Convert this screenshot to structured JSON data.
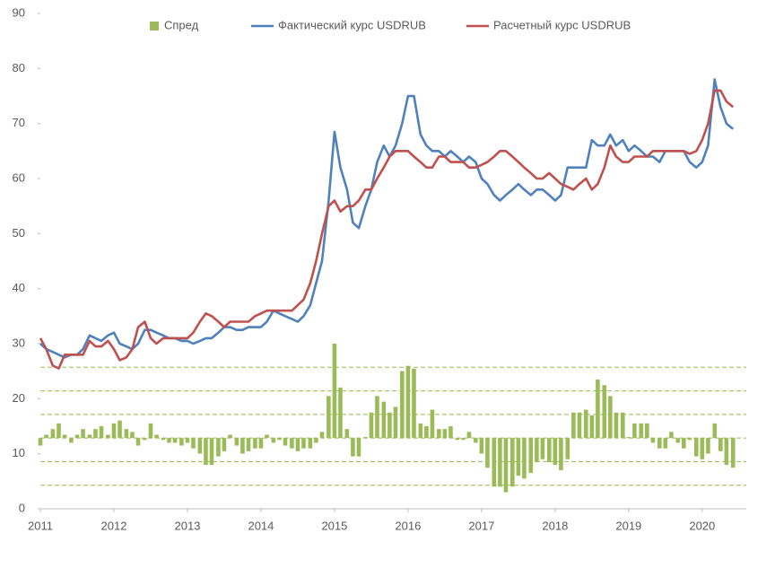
{
  "chart_data": {
    "type": "combo",
    "x": [
      2011,
      2011.08,
      2011.17,
      2011.25,
      2011.33,
      2011.42,
      2011.5,
      2011.58,
      2011.67,
      2011.75,
      2011.83,
      2011.92,
      2012,
      2012.08,
      2012.17,
      2012.25,
      2012.33,
      2012.42,
      2012.5,
      2012.58,
      2012.67,
      2012.75,
      2012.83,
      2012.92,
      2013,
      2013.08,
      2013.17,
      2013.25,
      2013.33,
      2013.42,
      2013.5,
      2013.58,
      2013.67,
      2013.75,
      2013.83,
      2013.92,
      2014,
      2014.08,
      2014.17,
      2014.25,
      2014.33,
      2014.42,
      2014.5,
      2014.58,
      2014.67,
      2014.75,
      2014.83,
      2014.92,
      2015,
      2015.08,
      2015.17,
      2015.25,
      2015.33,
      2015.42,
      2015.5,
      2015.58,
      2015.67,
      2015.75,
      2015.83,
      2015.92,
      2016,
      2016.08,
      2016.17,
      2016.25,
      2016.33,
      2016.42,
      2016.5,
      2016.58,
      2016.67,
      2016.75,
      2016.83,
      2016.92,
      2017,
      2017.08,
      2017.17,
      2017.25,
      2017.33,
      2017.42,
      2017.5,
      2017.58,
      2017.67,
      2017.75,
      2017.83,
      2017.92,
      2018,
      2018.08,
      2018.17,
      2018.25,
      2018.33,
      2018.42,
      2018.5,
      2018.58,
      2018.67,
      2018.75,
      2018.83,
      2018.92,
      2019,
      2019.08,
      2019.17,
      2019.25,
      2019.33,
      2019.42,
      2019.5,
      2019.58,
      2019.67,
      2019.75,
      2019.83,
      2019.92,
      2020,
      2020.08,
      2020.17,
      2020.25,
      2020.33,
      2020.42
    ],
    "series": [
      {
        "name": "Спред",
        "type": "bar",
        "axis": "y2",
        "color": "#9bbb59",
        "values": [
          -1.6,
          0.7,
          1.9,
          3.1,
          0.7,
          -1.0,
          0.7,
          1.9,
          0.7,
          1.9,
          2.5,
          0.7,
          3.1,
          3.7,
          1.9,
          1.3,
          -1.6,
          -0.4,
          3.1,
          0.7,
          -0.4,
          -1.0,
          -1.0,
          -1.6,
          -1.0,
          -2.2,
          -3.3,
          -5.7,
          -5.7,
          -3.9,
          -2.8,
          0.7,
          -1.6,
          -3.3,
          -2.8,
          -2.2,
          -2.2,
          0.7,
          -1.0,
          -0.4,
          -1.6,
          -2.2,
          -2.8,
          -2.2,
          -2.2,
          -1.0,
          1.3,
          8.9,
          20.0,
          10.7,
          1.9,
          -3.9,
          -3.9,
          0.2,
          5.4,
          8.9,
          7.7,
          5.4,
          6.6,
          14.2,
          15.3,
          14.7,
          3.1,
          2.5,
          6.0,
          1.9,
          1.9,
          2.5,
          -0.4,
          -0.4,
          1.3,
          -1.0,
          -3.3,
          -6.3,
          -10.3,
          -10.3,
          -11.5,
          -10.3,
          -8.0,
          -8.6,
          -7.4,
          -5.1,
          -4.5,
          -5.1,
          -5.7,
          -6.8,
          -4.5,
          5.4,
          5.4,
          6.0,
          4.8,
          12.4,
          11.2,
          8.9,
          5.4,
          5.4,
          0.2,
          3.1,
          3.1,
          3.1,
          -1.0,
          -2.2,
          -2.2,
          1.3,
          -1.0,
          -2.2,
          -0.4,
          -3.9,
          -4.5,
          -3.3,
          3.1,
          -2.8,
          -5.7,
          -6.3
        ]
      },
      {
        "name": "Фактический курс USDRUB",
        "type": "line",
        "color": "#4f81bd",
        "values": [
          30,
          29,
          28.5,
          28,
          27.5,
          28,
          28,
          29,
          31.5,
          31,
          30.5,
          31.5,
          32,
          30,
          29.5,
          29,
          30,
          32.5,
          32.5,
          32,
          31.5,
          31,
          31,
          30.5,
          30.5,
          30,
          30.5,
          31,
          31,
          32,
          33,
          33,
          32.5,
          32.5,
          33,
          33,
          33,
          34,
          36,
          35.5,
          35,
          34.5,
          34,
          35,
          37,
          41,
          45,
          56,
          68.5,
          62,
          58,
          52,
          51,
          55,
          58,
          63,
          66,
          64,
          66,
          70,
          75,
          75,
          68,
          66,
          65,
          65,
          64,
          65,
          64,
          63,
          64,
          63,
          60,
          59,
          57,
          56,
          57,
          58,
          59,
          58,
          57,
          58,
          58,
          57,
          56,
          57,
          62,
          62,
          62,
          62,
          67,
          66,
          66,
          68,
          66,
          67,
          65,
          66,
          65,
          64,
          64,
          63,
          65,
          65,
          65,
          65,
          63,
          62,
          63,
          66,
          78,
          73,
          70,
          69
        ]
      },
      {
        "name": "Расчетный курс USDRUB",
        "type": "line",
        "color": "#c0504d",
        "values": [
          31,
          29,
          26,
          25.5,
          28,
          28,
          28,
          28,
          30.5,
          29.5,
          29.5,
          30.5,
          29,
          27,
          27.5,
          29,
          33,
          34,
          31,
          30,
          31,
          31,
          31,
          31,
          31,
          32,
          34,
          35.5,
          35,
          34,
          33,
          34,
          34,
          34,
          34,
          35,
          35.5,
          36,
          36,
          36,
          36,
          36,
          37,
          38,
          41,
          45,
          50,
          55,
          56,
          54,
          55,
          55,
          56,
          58,
          58,
          60,
          62,
          64,
          65,
          65,
          65,
          64,
          63,
          62,
          62,
          64,
          64,
          63,
          63,
          63,
          62,
          62,
          62.5,
          63,
          64,
          65,
          65,
          64,
          63,
          62,
          61,
          60,
          60,
          61,
          60,
          59,
          58.5,
          58,
          59,
          60,
          58,
          59,
          62,
          66,
          64,
          63,
          63,
          64,
          64,
          64,
          65,
          65,
          65,
          65,
          65,
          65,
          64.5,
          65,
          67,
          70,
          76,
          76,
          74,
          73
        ]
      }
    ],
    "xlim": [
      2011,
      2020.6
    ],
    "xticks": [
      2011,
      2012,
      2013,
      2014,
      2015,
      2016,
      2017,
      2018,
      2019,
      2020
    ],
    "ylim": [
      0,
      90
    ],
    "yticks": [
      0,
      10,
      20,
      30,
      40,
      50,
      60,
      70,
      80,
      90
    ],
    "y2lim": [
      -15,
      90
    ],
    "y2ticks": [
      -15,
      -10,
      -5,
      0,
      5,
      10,
      15
    ],
    "y2_tick_labels": false,
    "y2_grid": true,
    "legend": "top"
  }
}
